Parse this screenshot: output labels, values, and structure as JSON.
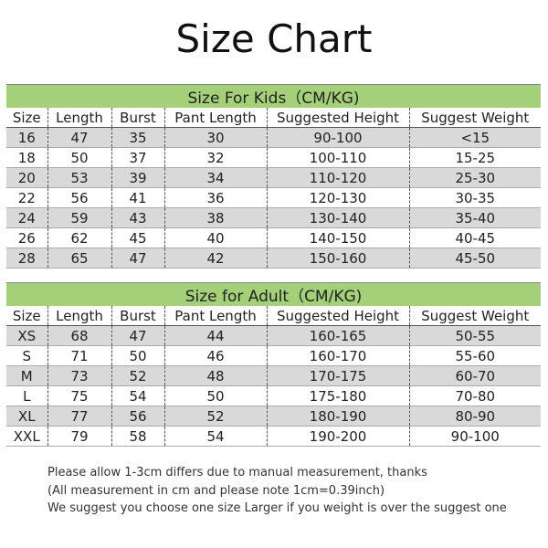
{
  "title": "Size Chart",
  "tables": [
    {
      "title": "Size For Kids（CM/KG)",
      "columns": [
        "Size",
        "Length",
        "Burst",
        "Pant Length",
        "Suggested Height",
        "Suggest Weight"
      ],
      "rows": [
        [
          "16",
          "47",
          "35",
          "30",
          "90-100",
          "<15"
        ],
        [
          "18",
          "50",
          "37",
          "32",
          "100-110",
          "15-25"
        ],
        [
          "20",
          "53",
          "39",
          "34",
          "110-120",
          "25-30"
        ],
        [
          "22",
          "56",
          "41",
          "36",
          "120-130",
          "30-35"
        ],
        [
          "24",
          "59",
          "43",
          "38",
          "130-140",
          "35-40"
        ],
        [
          "26",
          "62",
          "45",
          "40",
          "140-150",
          "40-45"
        ],
        [
          "28",
          "65",
          "47",
          "42",
          "150-160",
          "45-50"
        ]
      ]
    },
    {
      "title": "Size for Adult（CM/KG)",
      "columns": [
        "Size",
        "Length",
        "Burst",
        "Pant Length",
        "Suggested Height",
        "Suggest Weight"
      ],
      "rows": [
        [
          "XS",
          "68",
          "47",
          "44",
          "160-165",
          "50-55"
        ],
        [
          "S",
          "71",
          "50",
          "46",
          "160-170",
          "55-60"
        ],
        [
          "M",
          "73",
          "52",
          "48",
          "170-175",
          "60-70"
        ],
        [
          "L",
          "75",
          "54",
          "50",
          "175-180",
          "70-80"
        ],
        [
          "XL",
          "77",
          "56",
          "52",
          "180-190",
          "80-90"
        ],
        [
          "XXL",
          "79",
          "58",
          "54",
          "190-200",
          "90-100"
        ]
      ]
    }
  ],
  "notes": [
    "Please allow 1-3cm differs due to manual measurement, thanks",
    "(All measurement in cm and please note 1cm=0.39inch)",
    "We suggest you choose one size Larger if you weight is over the suggest one"
  ]
}
